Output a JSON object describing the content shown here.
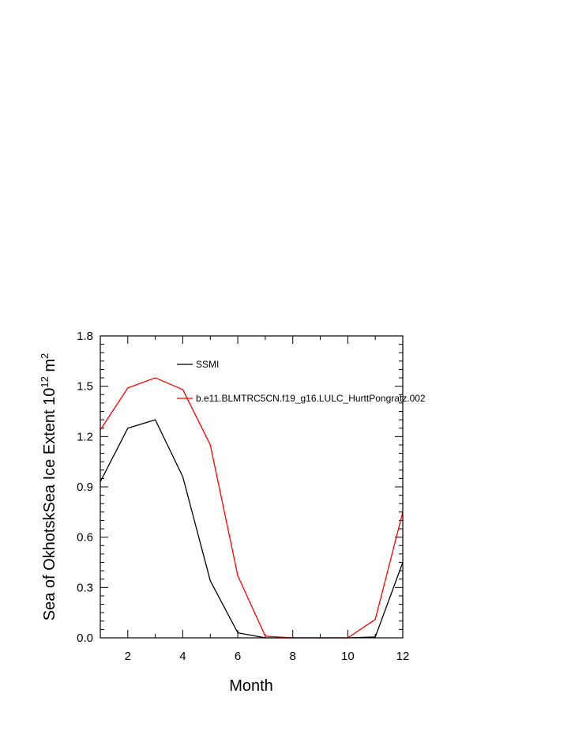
{
  "chart_data": {
    "type": "line",
    "xlabel": "Month",
    "ylabel_base": "Sea of OkhotskSea Ice Extent 10",
    "ylabel_exp": "12",
    "ylabel_unit": " m",
    "ylabel_unit_exp": "2",
    "xlim": [
      1,
      12
    ],
    "ylim": [
      0,
      1.8
    ],
    "xticks": [
      2,
      4,
      6,
      8,
      10,
      12
    ],
    "xtick_labels": [
      "2",
      "4",
      "6",
      "8",
      "10",
      "12"
    ],
    "yticks": [
      0,
      0.3,
      0.6,
      0.9,
      1.2,
      1.5,
      1.8
    ],
    "ytick_labels": [
      "0.0",
      "0.3",
      "0.6",
      "0.9",
      "1.2",
      "1.5",
      "1.8"
    ],
    "x": [
      1,
      2,
      3,
      4,
      5,
      6,
      7,
      8,
      9,
      10,
      11,
      12
    ],
    "series": [
      {
        "name": "SSMI",
        "color": "#000000",
        "values": [
          0.93,
          1.25,
          1.3,
          0.96,
          0.34,
          0.03,
          0.0,
          0.0,
          0.0,
          0.0,
          0.005,
          0.45
        ]
      },
      {
        "name": "b.e11.BLMTRC5CN.f19_g16.LULC_HurttPongratz.002",
        "color": "#ff0000",
        "values": [
          1.24,
          1.49,
          1.55,
          1.48,
          1.15,
          0.37,
          0.01,
          0.0,
          0.0,
          0.0,
          0.11,
          0.75
        ]
      }
    ],
    "legend_position": "top-right, inside plot",
    "grid": false
  }
}
